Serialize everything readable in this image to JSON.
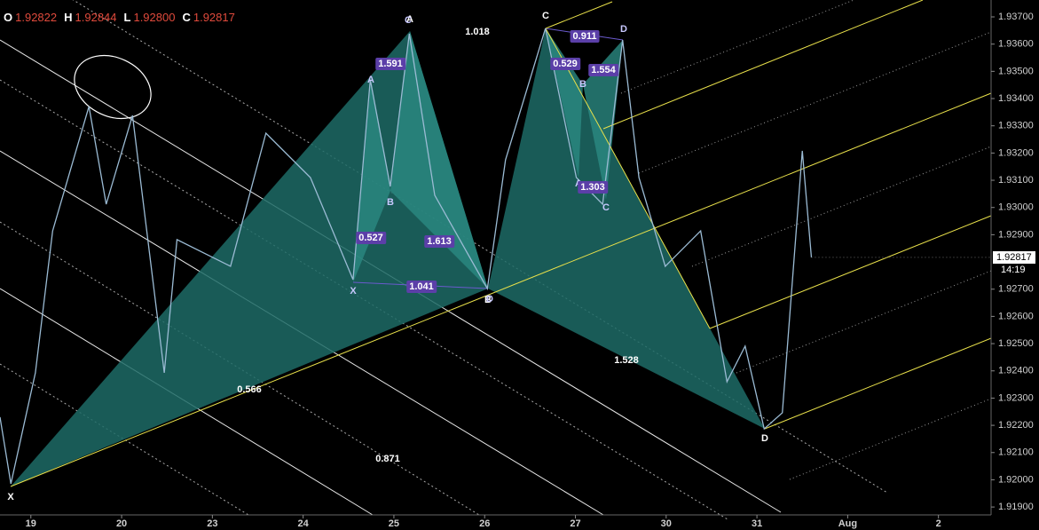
{
  "chart_data": {
    "type": "line",
    "ohlc": [
      {
        "key": "O",
        "value": "1.92822"
      },
      {
        "key": "H",
        "value": "1.92844"
      },
      {
        "key": "L",
        "value": "1.92800"
      },
      {
        "key": "C",
        "value": "1.92817"
      }
    ],
    "series": [
      {
        "color": "#9bbbd4",
        "x": [
          -0.34,
          -0.22,
          0.05,
          0.24,
          0.64,
          0.83,
          1.12,
          1.47,
          1.61,
          2.2,
          2.59,
          3.08,
          3.55,
          3.74,
          3.96,
          4.17,
          4.45,
          5.03,
          5.23,
          5.67,
          6.01,
          6.3,
          6.52,
          6.7,
          6.99,
          7.38,
          7.67,
          7.87,
          8.08,
          8.28,
          8.5,
          8.6
        ],
        "values": [
          1.9223,
          1.91985,
          1.92393,
          1.92914,
          1.93371,
          1.93012,
          1.93338,
          1.92393,
          1.92882,
          1.92784,
          1.93273,
          1.9311,
          1.92735,
          1.93469,
          1.93077,
          1.93638,
          1.93045,
          1.92702,
          1.93175,
          1.93658,
          1.9311,
          1.93012,
          1.93615,
          1.9311,
          1.92784,
          1.92914,
          1.9236,
          1.92491,
          1.92187,
          1.92246,
          1.93208,
          1.92817
        ]
      }
    ],
    "xlim": [
      -0.34,
      10.58
    ],
    "ylim": [
      1.91871,
      1.93762
    ],
    "xticks": [
      {
        "value": 0,
        "label": "19"
      },
      {
        "value": 1,
        "label": "20"
      },
      {
        "value": 2,
        "label": "23"
      },
      {
        "value": 3,
        "label": "24"
      },
      {
        "value": 4,
        "label": "25"
      },
      {
        "value": 5,
        "label": "26"
      },
      {
        "value": 6,
        "label": "27"
      },
      {
        "value": 7,
        "label": "30"
      },
      {
        "value": 8,
        "label": "31"
      },
      {
        "value": 9,
        "label": "Aug"
      },
      {
        "value": 10,
        "label": "2"
      }
    ],
    "yticks": [
      {
        "value": 1.937,
        "label": "1.93700"
      },
      {
        "value": 1.936,
        "label": "1.93600"
      },
      {
        "value": 1.935,
        "label": "1.93500"
      },
      {
        "value": 1.934,
        "label": "1.93400"
      },
      {
        "value": 1.933,
        "label": "1.93300"
      },
      {
        "value": 1.932,
        "label": "1.93200"
      },
      {
        "value": 1.931,
        "label": "1.93100"
      },
      {
        "value": 1.93,
        "label": "1.93000"
      },
      {
        "value": 1.929,
        "label": "1.92900"
      },
      {
        "value": 1.927,
        "label": "1.92700"
      },
      {
        "value": 1.926,
        "label": "1.92600"
      },
      {
        "value": 1.925,
        "label": "1.92500"
      },
      {
        "value": 1.924,
        "label": "1.92400"
      },
      {
        "value": 1.923,
        "label": "1.92300"
      },
      {
        "value": 1.922,
        "label": "1.92200"
      },
      {
        "value": 1.921,
        "label": "1.92100"
      },
      {
        "value": 1.92,
        "label": "1.92000"
      },
      {
        "value": 1.919,
        "label": "1.91900"
      }
    ],
    "last_price": 1.92817,
    "countdown": "14:19",
    "pattern_labels": [
      "X",
      "A",
      "B",
      "C",
      "D",
      "X",
      "A",
      "B",
      "C",
      "D",
      "A",
      "B",
      "C",
      "D"
    ],
    "ratios": [
      "1.591",
      "0.527",
      "1.613",
      "1.041",
      "0.529",
      "1.554",
      "0.911",
      "1.303"
    ],
    "big_ratios": [
      "1.018",
      "0.566",
      "0.871",
      "1.528"
    ]
  }
}
